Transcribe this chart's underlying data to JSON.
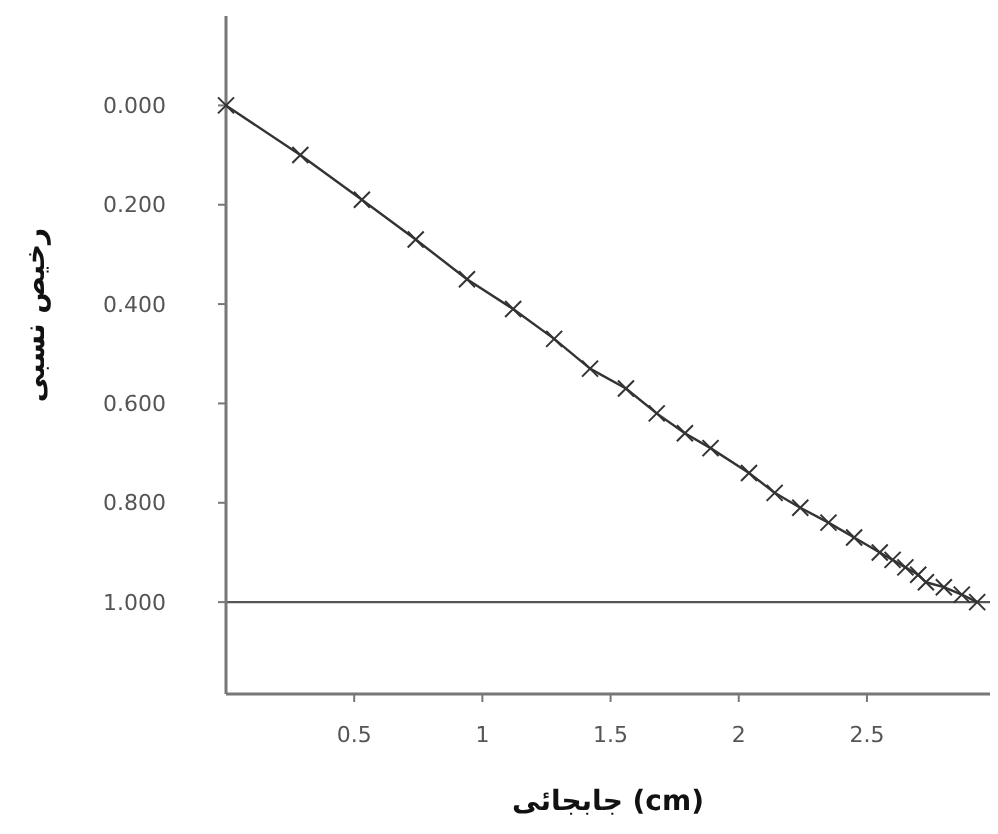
{
  "chart_data": {
    "type": "line",
    "xlabel": "جابجائی (cm)",
    "ylabel": "رخیص نسبی",
    "xlim": [
      0,
      2.98
    ],
    "ylim": [
      1.185,
      -0.18
    ],
    "xticks": [
      0.5,
      1,
      1.5,
      2,
      2.5
    ],
    "yticks": [
      {
        "value": 0,
        "label": "0.000"
      },
      {
        "value": 0.2,
        "label": "0.200"
      },
      {
        "value": 0.4,
        "label": "0.400"
      },
      {
        "value": 0.6,
        "label": "0.600"
      },
      {
        "value": 0.8,
        "label": "0.800"
      },
      {
        "value": 1,
        "label": "1.000"
      }
    ],
    "grid": false,
    "marker": "cross",
    "line_style": "solid",
    "ref_lines": [
      {
        "axis": "y",
        "value": 1,
        "color": "#555555"
      }
    ],
    "series": [
      {
        "color": "#333333",
        "x": [
          0,
          0.29,
          0.53,
          0.74,
          0.94,
          1.12,
          1.28,
          1.42,
          1.56,
          1.68,
          1.79,
          1.89,
          2.04,
          2.14,
          2.24,
          2.35,
          2.45,
          2.55,
          2.6,
          2.65,
          2.7,
          2.73,
          2.8,
          2.87,
          2.93
        ],
        "values": [
          0,
          0.1,
          0.19,
          0.27,
          0.35,
          0.41,
          0.47,
          0.53,
          0.57,
          0.62,
          0.66,
          0.69,
          0.74,
          0.78,
          0.81,
          0.84,
          0.87,
          0.9,
          0.915,
          0.93,
          0.945,
          0.96,
          0.97,
          0.985,
          1.0
        ]
      }
    ]
  }
}
